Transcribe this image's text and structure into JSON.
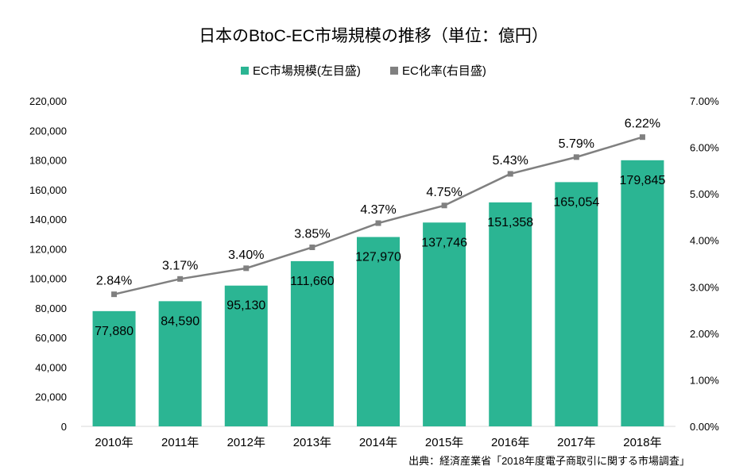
{
  "chart_data": {
    "type": "bar",
    "title": "日本のBtoC-EC市場規模の推移（単位：億円）",
    "categories": [
      "2010年",
      "2011年",
      "2012年",
      "2013年",
      "2014年",
      "2015年",
      "2016年",
      "2017年",
      "2018年"
    ],
    "series": [
      {
        "name": "EC市場規模(左目盛)",
        "kind": "bar",
        "axis": "left",
        "color": "#2bb593",
        "values": [
          77880,
          84590,
          95130,
          111660,
          127970,
          137746,
          151358,
          165054,
          179845
        ],
        "labels": [
          "77,880",
          "84,590",
          "95,130",
          "111,660",
          "127,970",
          "137,746",
          "151,358",
          "165,054",
          "179,845"
        ]
      },
      {
        "name": "EC化率(右目盛)",
        "kind": "line",
        "axis": "right",
        "color": "#808080",
        "values": [
          2.84,
          3.17,
          3.4,
          3.85,
          4.37,
          4.75,
          5.43,
          5.79,
          6.22
        ],
        "labels": [
          "2.84%",
          "3.17%",
          "3.40%",
          "3.85%",
          "4.37%",
          "4.75%",
          "5.43%",
          "5.79%",
          "6.22%"
        ]
      }
    ],
    "y_left": {
      "range": [
        0,
        220000
      ],
      "ticks": [
        0,
        20000,
        40000,
        60000,
        80000,
        100000,
        120000,
        140000,
        160000,
        180000,
        200000,
        220000
      ],
      "tick_labels": [
        "0",
        "20,000",
        "40,000",
        "60,000",
        "80,000",
        "100,000",
        "120,000",
        "140,000",
        "160,000",
        "180,000",
        "200,000",
        "220,000"
      ]
    },
    "y_right": {
      "range": [
        0,
        7
      ],
      "ticks": [
        0,
        1,
        2,
        3,
        4,
        5,
        6,
        7
      ],
      "tick_labels": [
        "0.00%",
        "1.00%",
        "2.00%",
        "3.00%",
        "4.00%",
        "5.00%",
        "6.00%",
        "7.00%"
      ]
    },
    "legend_position": "top-center",
    "grid": false,
    "source": "出典：経済産業省「2018年度電子商取引に関する市場調査」"
  }
}
